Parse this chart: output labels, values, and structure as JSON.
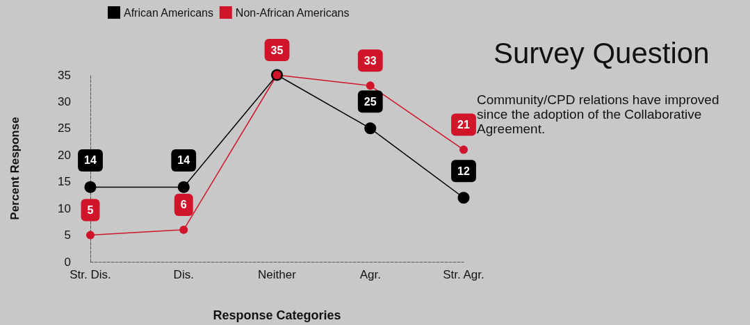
{
  "chart_data": {
    "type": "line",
    "title": "Survey Question",
    "xlabel": "Response Categories",
    "ylabel": "Percent Response",
    "annotations": [
      "Community/CPD relations have improved since the adoption of the Collaborative Agreement."
    ],
    "categories": [
      "Str. Dis.",
      "Dis.",
      "Neither",
      "Agr.",
      "Str. Agr."
    ],
    "series": [
      {
        "name": "African Americans",
        "color": "#000000",
        "values": [
          14,
          14,
          35,
          25,
          12
        ],
        "value_labels": [
          "14",
          "14",
          null,
          "25",
          "12"
        ]
      },
      {
        "name": "Non-African Americans",
        "color": "#d0152a",
        "values": [
          5,
          6,
          35,
          33,
          21
        ],
        "value_labels": [
          "5",
          "6",
          "35",
          "33",
          "21"
        ]
      }
    ],
    "ylim": [
      0,
      35
    ],
    "yticks": [
      0,
      5,
      10,
      15,
      20,
      25,
      30,
      35
    ],
    "grid": false,
    "legend": "top left",
    "marker": "circle",
    "line_style": "solid"
  }
}
